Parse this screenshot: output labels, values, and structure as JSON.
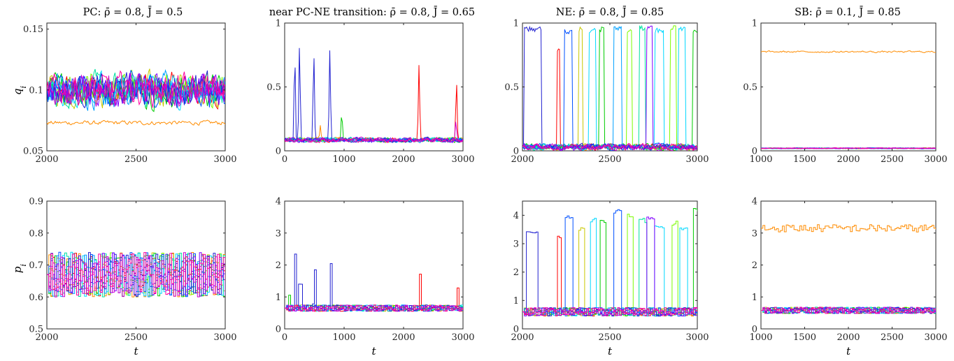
{
  "palette": [
    "#ff0000",
    "#ff8c00",
    "#c8c800",
    "#7cfc00",
    "#00cc00",
    "#00e0a0",
    "#00d8ff",
    "#00a0ff",
    "#0050ff",
    "#2020d0",
    "#8000ff",
    "#d000d0",
    "#ff00a0"
  ],
  "chart_data": [
    {
      "type": "line",
      "panel": "top-1",
      "title": "PC: ρ̄ = 0.8, J̄ = 0.5",
      "ylabel": "q_i",
      "xlabel": "",
      "xlim": [
        2000,
        3000
      ],
      "ylim": [
        0.05,
        0.155
      ],
      "xticks": [
        2000,
        2500,
        3000
      ],
      "yticks": [
        0.05,
        0.1,
        0.15
      ],
      "gen": {
        "style": "smooth",
        "mode": "fluct",
        "base": 0.1,
        "amp": 0.022,
        "special": {
          "index": 1,
          "base": 0.073,
          "amp": 0.003
        }
      }
    },
    {
      "type": "line",
      "panel": "top-2",
      "title": "near PC-NE transition: ρ̄ = 0.8, J̄ = 0.65",
      "ylabel": "",
      "xlabel": "",
      "xlim": [
        0,
        3000
      ],
      "ylim": [
        0,
        1
      ],
      "xticks": [
        0,
        1000,
        2000,
        3000
      ],
      "yticks": [
        0,
        0.5,
        1
      ],
      "gen": {
        "style": "smooth",
        "mode": "spikes",
        "base": 0.085,
        "amp": 0.03,
        "spikes": [
          [
            9,
            250,
            0.9
          ],
          [
            9,
            170,
            0.85
          ],
          [
            9,
            490,
            0.85
          ],
          [
            9,
            760,
            0.82
          ],
          [
            4,
            960,
            0.33
          ],
          [
            0,
            2260,
            0.7
          ],
          [
            0,
            2890,
            0.6
          ],
          [
            1,
            600,
            0.2
          ],
          [
            11,
            2880,
            0.25
          ]
        ]
      }
    },
    {
      "type": "line",
      "panel": "top-3",
      "title": "NE: ρ̄ = 0.8, J̄ = 0.85",
      "ylabel": "",
      "xlabel": "",
      "xlim": [
        2000,
        3000
      ],
      "ylim": [
        0,
        1
      ],
      "xticks": [
        2000,
        2500,
        3000
      ],
      "yticks": [
        0,
        0.5,
        1
      ],
      "gen": {
        "style": "smooth",
        "mode": "blocks",
        "base": 0.03,
        "amp": 0.04,
        "blocks": [
          [
            9,
            2010,
            2110,
            0.97
          ],
          [
            0,
            2195,
            2215,
            0.8
          ],
          [
            8,
            2240,
            2285,
            0.95
          ],
          [
            2,
            2320,
            2345,
            0.97
          ],
          [
            6,
            2380,
            2420,
            0.96
          ],
          [
            4,
            2440,
            2470,
            0.97
          ],
          [
            7,
            2520,
            2565,
            0.98
          ],
          [
            3,
            2595,
            2625,
            0.96
          ],
          [
            5,
            2665,
            2700,
            0.98
          ],
          [
            10,
            2710,
            2745,
            0.98
          ],
          [
            6,
            2755,
            2810,
            0.96
          ],
          [
            3,
            2845,
            2880,
            0.98
          ],
          [
            6,
            2890,
            2935,
            0.97
          ],
          [
            4,
            2975,
            3000,
            0.95
          ]
        ]
      }
    },
    {
      "type": "line",
      "panel": "top-4",
      "title": "SB: ρ̄ = 0.1, J̄ = 0.85",
      "ylabel": "",
      "xlabel": "",
      "xlim": [
        1000,
        3000
      ],
      "ylim": [
        0,
        1
      ],
      "xticks": [
        1000,
        1500,
        2000,
        2500,
        3000
      ],
      "yticks": [
        0,
        0.5,
        1
      ],
      "gen": {
        "style": "smooth",
        "mode": "flat",
        "base": 0.02,
        "amp": 0.006,
        "special": {
          "index": 1,
          "base": 0.775,
          "amp": 0.012
        }
      }
    },
    {
      "type": "line",
      "panel": "bottom-1",
      "title": "",
      "ylabel": "p_i",
      "xlabel": "t",
      "xlim": [
        2000,
        3000
      ],
      "ylim": [
        0.5,
        0.9
      ],
      "xticks": [
        2000,
        2500,
        3000
      ],
      "yticks": [
        0.5,
        0.6,
        0.7,
        0.8,
        0.9
      ],
      "gen": {
        "style": "step",
        "mode": "fluct",
        "base": 0.67,
        "amp": 0.07
      }
    },
    {
      "type": "line",
      "panel": "bottom-2",
      "title": "",
      "ylabel": "",
      "xlabel": "t",
      "xlim": [
        0,
        3000
      ],
      "ylim": [
        0,
        4
      ],
      "xticks": [
        0,
        1000,
        2000,
        3000
      ],
      "yticks": [
        0,
        1,
        2,
        3,
        4
      ],
      "gen": {
        "style": "step",
        "mode": "spikes",
        "base": 0.65,
        "amp": 0.1,
        "spikes": [
          [
            9,
            250,
            2.9
          ],
          [
            9,
            170,
            2.6
          ],
          [
            9,
            490,
            2.65
          ],
          [
            9,
            760,
            2.55
          ],
          [
            0,
            2260,
            2.1
          ],
          [
            0,
            2890,
            1.7
          ],
          [
            4,
            60,
            1.2
          ]
        ]
      }
    },
    {
      "type": "line",
      "panel": "bottom-3",
      "title": "",
      "ylabel": "",
      "xlabel": "t",
      "xlim": [
        2000,
        3000
      ],
      "ylim": [
        0,
        4.5
      ],
      "xticks": [
        2000,
        2500,
        3000
      ],
      "yticks": [
        0,
        1,
        2,
        3,
        4
      ],
      "gen": {
        "style": "step",
        "mode": "blocks",
        "base": 0.6,
        "amp": 0.15,
        "blocks": [
          [
            9,
            2020,
            2080,
            3.5
          ],
          [
            0,
            2195,
            2215,
            3.3
          ],
          [
            8,
            2240,
            2285,
            4.0
          ],
          [
            2,
            2320,
            2345,
            3.6
          ],
          [
            6,
            2380,
            2420,
            3.9
          ],
          [
            4,
            2440,
            2470,
            3.9
          ],
          [
            8,
            2520,
            2560,
            4.2
          ],
          [
            3,
            2595,
            2625,
            4.1
          ],
          [
            5,
            2665,
            2700,
            3.9
          ],
          [
            10,
            2710,
            2745,
            4.0
          ],
          [
            6,
            2755,
            2810,
            3.7
          ],
          [
            3,
            2845,
            2880,
            3.8
          ],
          [
            6,
            2890,
            2935,
            3.6
          ],
          [
            4,
            2975,
            3000,
            4.3
          ]
        ]
      }
    },
    {
      "type": "line",
      "panel": "bottom-4",
      "title": "",
      "ylabel": "",
      "xlabel": "t",
      "xlim": [
        1000,
        3000
      ],
      "ylim": [
        0,
        4
      ],
      "xticks": [
        1000,
        1500,
        2000,
        2500,
        3000
      ],
      "yticks": [
        0,
        1,
        2,
        3,
        4
      ],
      "gen": {
        "style": "step",
        "mode": "flat",
        "base": 0.58,
        "amp": 0.1,
        "special": {
          "index": 1,
          "base": 3.15,
          "amp": 0.12
        }
      }
    }
  ]
}
